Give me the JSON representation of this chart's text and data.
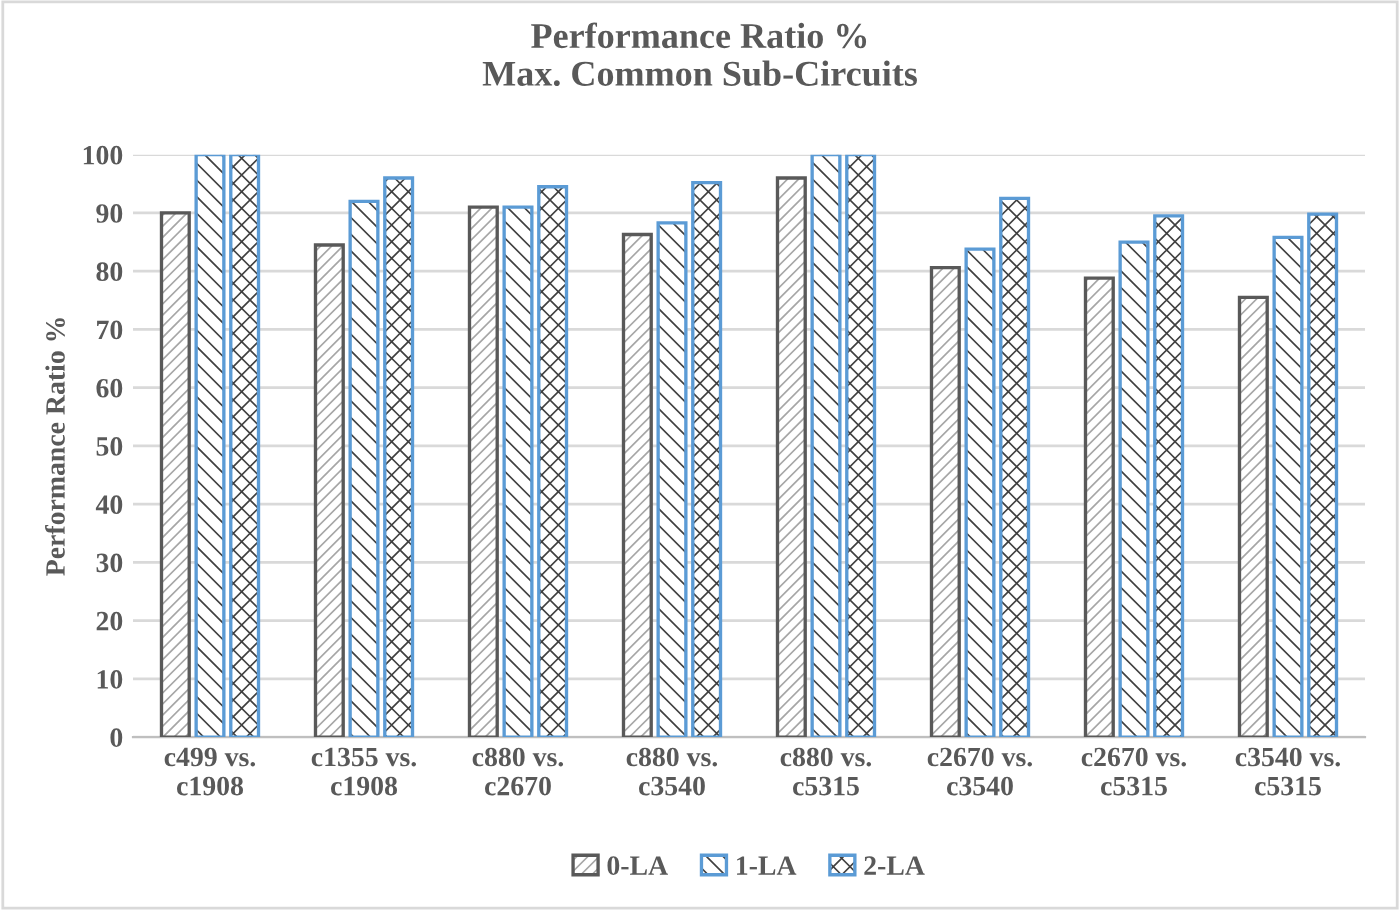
{
  "chart_data": {
    "type": "bar",
    "title": "Performance Ratio %\nMax. Common Sub-Circuits",
    "ylabel": "Performance Ratio %",
    "categories": [
      "c499 vs.\nc1908",
      "c1355 vs.\nc1908",
      "c880 vs.\nc2670",
      "c880 vs.\nc3540",
      "c880 vs.\nc5315",
      "c2670 vs.\nc3540",
      "c2670 vs.\nc5315",
      "c3540 vs.\nc5315"
    ],
    "series": [
      {
        "name": "0-LA",
        "color": "#595959",
        "values": [
          90,
          84.5,
          91,
          86.3,
          96,
          80.6,
          78.8,
          75.5
        ]
      },
      {
        "name": "1-LA",
        "color": "#5b9bd5",
        "values": [
          100,
          92,
          91,
          88.3,
          100,
          83.8,
          85,
          85.8
        ]
      },
      {
        "name": "2-LA",
        "color": "#5b9bd5",
        "values": [
          100,
          96,
          94.5,
          95.2,
          100,
          92.5,
          89.5,
          89.8
        ]
      }
    ],
    "ylim": [
      0,
      100
    ],
    "yticks": [
      0,
      10,
      20,
      30,
      40,
      50,
      60,
      70,
      80,
      90,
      100
    ],
    "grid": "y",
    "legend": "bottom"
  }
}
